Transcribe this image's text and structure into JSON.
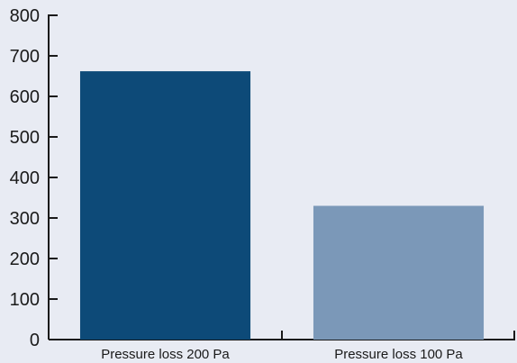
{
  "colors": {
    "background": "#e8ebf3",
    "axis": "#1a1a1a"
  },
  "chart_data": {
    "type": "bar",
    "categories": [
      "Pressure loss 200 Pa",
      "Pressure loss 100 Pa"
    ],
    "values": [
      662,
      330
    ],
    "bar_colors": [
      "#0d4a78",
      "#7b98b8"
    ],
    "title": "",
    "xlabel": "",
    "ylabel": "",
    "ylim": [
      0,
      800
    ],
    "yticks": [
      "0",
      "100",
      "200",
      "300",
      "400",
      "500",
      "600",
      "700",
      "800"
    ],
    "grid": false,
    "legend": false
  }
}
